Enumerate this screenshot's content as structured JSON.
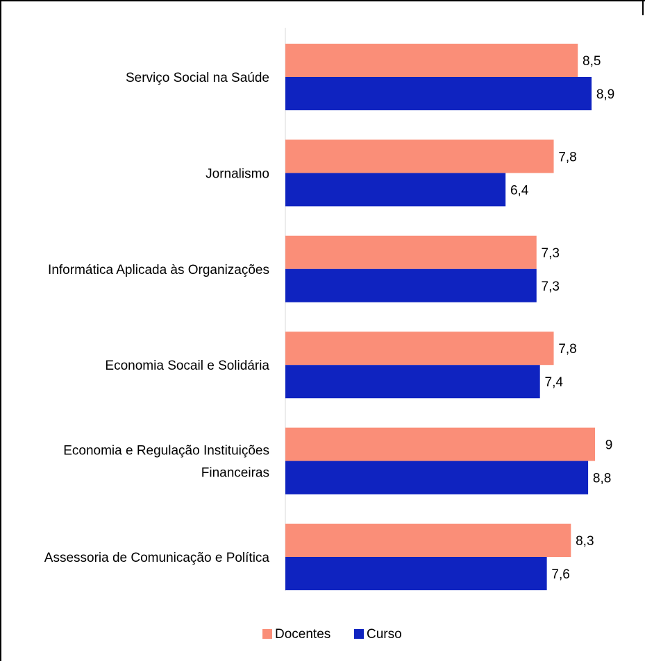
{
  "chart_data": {
    "type": "bar",
    "orientation": "horizontal",
    "categories": [
      "Serviço Social na Saúde",
      "Jornalismo",
      "Informática Aplicada às Organizações",
      "Economia Socail e Solidária",
      "Economia e Regulação Instituições Financeiras",
      "Assessoria de Comunicação e Política"
    ],
    "category_lines": [
      [
        "Serviço Social na Saúde"
      ],
      [
        "Jornalismo"
      ],
      [
        "Informática Aplicada às Organizações"
      ],
      [
        "Economia Socail e Solidária"
      ],
      [
        "Economia e Regulação Instituições",
        "Financeiras"
      ],
      [
        "Assessoria de Comunicação e Política"
      ]
    ],
    "series": [
      {
        "name": "Docentes",
        "color": "#FA8E78",
        "values": [
          8.5,
          7.8,
          7.3,
          7.8,
          9,
          8.3
        ],
        "labels": [
          "8,5",
          "7,8",
          "7,3",
          "7,8",
          "9",
          "8,3"
        ]
      },
      {
        "name": "Curso",
        "color": "#0F23C0",
        "values": [
          8.9,
          6.4,
          7.3,
          7.4,
          8.8,
          7.6
        ],
        "labels": [
          "8,9",
          "6,4",
          "7,3",
          "7,4",
          "8,8",
          "7,6"
        ]
      }
    ],
    "xlim": [
      0,
      10
    ],
    "axis_visible": false,
    "grid": false,
    "legend_position": "bottom"
  }
}
